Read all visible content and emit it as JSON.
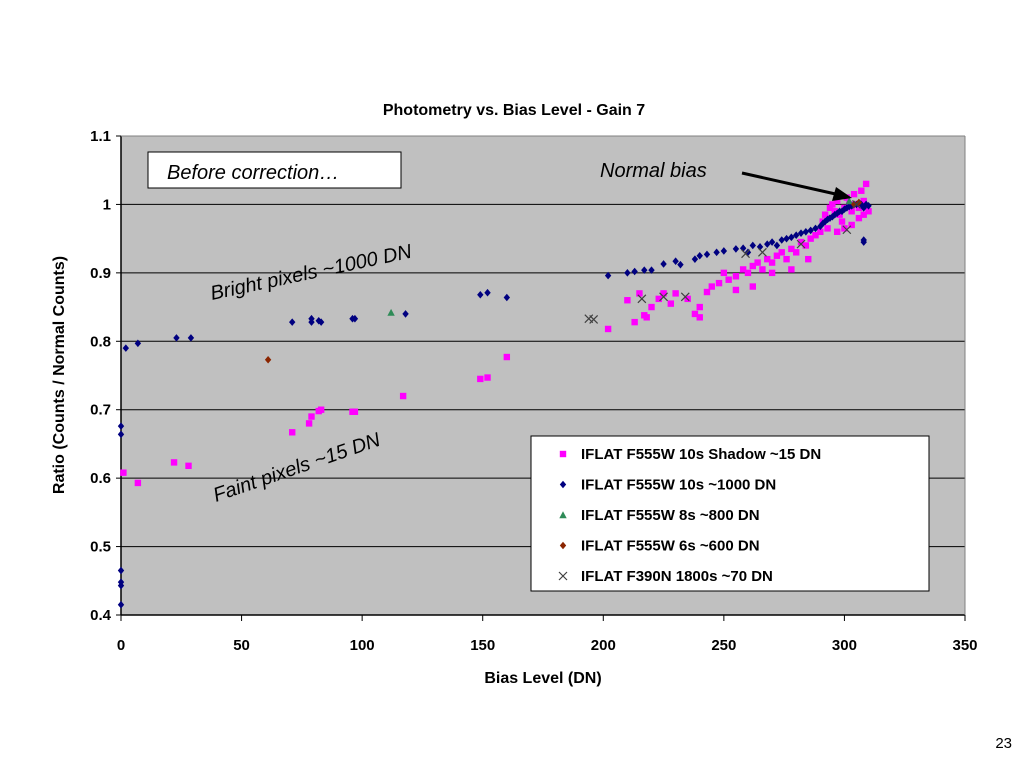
{
  "slide": {
    "page_number": "23"
  },
  "chart_data": {
    "type": "scatter",
    "title": "Photometry vs. Bias Level - Gain 7",
    "xlabel": "Bias Level (DN)",
    "ylabel": "Ratio (Counts / Normal Counts)",
    "xlim": [
      0,
      350
    ],
    "ylim": [
      0.4,
      1.1
    ],
    "x_ticks": [
      "0",
      "50",
      "100",
      "150",
      "200",
      "250",
      "300",
      "350"
    ],
    "y_ticks": [
      "0.4",
      "0.5",
      "0.6",
      "0.7",
      "0.8",
      "0.9",
      "1",
      "1.1"
    ],
    "grid": "horizontal",
    "plot_background": "#c0c0c0",
    "legend_position": "bottom-right",
    "annotations": {
      "box": "Before correction…",
      "normal_bias": "Normal bias",
      "bright": "Bright pixels ~1000 DN",
      "faint": "Faint pixels ~15 DN"
    },
    "series": [
      {
        "name": "IFLAT F555W 10s Shadow ~15 DN",
        "marker": "square",
        "color": "#ff00ff",
        "points": [
          [
            1,
            0.608
          ],
          [
            7,
            0.593
          ],
          [
            22,
            0.623
          ],
          [
            28,
            0.618
          ],
          [
            71,
            0.667
          ],
          [
            78,
            0.68
          ],
          [
            79,
            0.69
          ],
          [
            82,
            0.698
          ],
          [
            83,
            0.7
          ],
          [
            96,
            0.697
          ],
          [
            97,
            0.697
          ],
          [
            117,
            0.72
          ],
          [
            149,
            0.745
          ],
          [
            152,
            0.747
          ],
          [
            160,
            0.777
          ],
          [
            202,
            0.818
          ],
          [
            210,
            0.86
          ],
          [
            213,
            0.828
          ],
          [
            215,
            0.87
          ],
          [
            217,
            0.838
          ],
          [
            218,
            0.835
          ],
          [
            220,
            0.85
          ],
          [
            223,
            0.862
          ],
          [
            228,
            0.855
          ],
          [
            230,
            0.87
          ],
          [
            235,
            0.862
          ],
          [
            238,
            0.84
          ],
          [
            240,
            0.85
          ],
          [
            243,
            0.872
          ],
          [
            245,
            0.88
          ],
          [
            248,
            0.885
          ],
          [
            250,
            0.9
          ],
          [
            252,
            0.89
          ],
          [
            255,
            0.895
          ],
          [
            258,
            0.905
          ],
          [
            260,
            0.9
          ],
          [
            262,
            0.91
          ],
          [
            264,
            0.915
          ],
          [
            266,
            0.905
          ],
          [
            268,
            0.92
          ],
          [
            270,
            0.915
          ],
          [
            272,
            0.925
          ],
          [
            274,
            0.93
          ],
          [
            276,
            0.92
          ],
          [
            278,
            0.935
          ],
          [
            280,
            0.93
          ],
          [
            282,
            0.945
          ],
          [
            284,
            0.94
          ],
          [
            286,
            0.95
          ],
          [
            288,
            0.955
          ],
          [
            290,
            0.96
          ],
          [
            291,
            0.975
          ],
          [
            292,
            0.985
          ],
          [
            293,
            0.98
          ],
          [
            294,
            0.995
          ],
          [
            295,
            1.0
          ],
          [
            296,
            0.99
          ],
          [
            297,
            1.005
          ],
          [
            298,
            0.985
          ],
          [
            299,
            0.975
          ],
          [
            300,
            0.995
          ],
          [
            301,
            1.01
          ],
          [
            302,
            1.0
          ],
          [
            303,
            0.99
          ],
          [
            304,
            1.015
          ],
          [
            305,
            1.0
          ],
          [
            306,
            0.995
          ],
          [
            307,
            1.02
          ],
          [
            308,
            1.005
          ],
          [
            309,
            1.03
          ],
          [
            310,
            0.99
          ],
          [
            300,
            0.965
          ],
          [
            303,
            0.97
          ],
          [
            297,
            0.96
          ],
          [
            293,
            0.965
          ],
          [
            306,
            0.98
          ],
          [
            308,
            0.985
          ],
          [
            240,
            0.835
          ],
          [
            225,
            0.87
          ],
          [
            255,
            0.875
          ],
          [
            262,
            0.88
          ],
          [
            270,
            0.9
          ],
          [
            278,
            0.905
          ],
          [
            285,
            0.92
          ]
        ]
      },
      {
        "name": "IFLAT F555W 10s ~1000 DN",
        "marker": "diamond",
        "color": "#000080",
        "points": [
          [
            0,
            0.676
          ],
          [
            0,
            0.664
          ],
          [
            0,
            0.465
          ],
          [
            0,
            0.448
          ],
          [
            0,
            0.443
          ],
          [
            0,
            0.415
          ],
          [
            2,
            0.79
          ],
          [
            7,
            0.797
          ],
          [
            23,
            0.805
          ],
          [
            29,
            0.805
          ],
          [
            71,
            0.828
          ],
          [
            79,
            0.833
          ],
          [
            79,
            0.828
          ],
          [
            82,
            0.83
          ],
          [
            83,
            0.828
          ],
          [
            96,
            0.833
          ],
          [
            97,
            0.833
          ],
          [
            118,
            0.84
          ],
          [
            149,
            0.868
          ],
          [
            152,
            0.871
          ],
          [
            160,
            0.864
          ],
          [
            202,
            0.896
          ],
          [
            210,
            0.9
          ],
          [
            213,
            0.902
          ],
          [
            217,
            0.904
          ],
          [
            220,
            0.904
          ],
          [
            225,
            0.913
          ],
          [
            230,
            0.917
          ],
          [
            232,
            0.912
          ],
          [
            238,
            0.92
          ],
          [
            240,
            0.925
          ],
          [
            243,
            0.927
          ],
          [
            247,
            0.93
          ],
          [
            250,
            0.932
          ],
          [
            255,
            0.935
          ],
          [
            258,
            0.936
          ],
          [
            260,
            0.93
          ],
          [
            262,
            0.94
          ],
          [
            265,
            0.938
          ],
          [
            268,
            0.942
          ],
          [
            270,
            0.945
          ],
          [
            272,
            0.94
          ],
          [
            274,
            0.948
          ],
          [
            276,
            0.95
          ],
          [
            278,
            0.952
          ],
          [
            280,
            0.955
          ],
          [
            282,
            0.958
          ],
          [
            284,
            0.96
          ],
          [
            286,
            0.962
          ],
          [
            288,
            0.965
          ],
          [
            290,
            0.968
          ],
          [
            291,
            0.972
          ],
          [
            292,
            0.975
          ],
          [
            293,
            0.978
          ],
          [
            294,
            0.98
          ],
          [
            295,
            0.982
          ],
          [
            296,
            0.985
          ],
          [
            297,
            0.987
          ],
          [
            298,
            0.99
          ],
          [
            299,
            0.99
          ],
          [
            300,
            0.993
          ],
          [
            301,
            0.995
          ],
          [
            302,
            0.997
          ],
          [
            303,
            0.998
          ],
          [
            304,
            1.0
          ],
          [
            305,
            1.0
          ],
          [
            306,
            1.002
          ],
          [
            307,
            1.0
          ],
          [
            308,
            0.995
          ],
          [
            309,
            1.0
          ],
          [
            310,
            0.998
          ],
          [
            308,
            0.948
          ],
          [
            308,
            0.945
          ]
        ]
      },
      {
        "name": "IFLAT F555W 8s ~800 DN",
        "marker": "triangle",
        "color": "#2e8b57",
        "points": [
          [
            112,
            0.842
          ],
          [
            302,
            1.005
          ]
        ]
      },
      {
        "name": "IFLAT F555W 6s ~600 DN",
        "marker": "diamond",
        "color": "#8b2500",
        "points": [
          [
            61,
            0.773
          ],
          [
            304,
            1.0
          ],
          [
            306,
            1.003
          ]
        ]
      },
      {
        "name": "IFLAT F390N 1800s ~70 DN",
        "marker": "x",
        "color": "#404040",
        "points": [
          [
            194,
            0.833
          ],
          [
            196,
            0.832
          ],
          [
            216,
            0.862
          ],
          [
            225,
            0.865
          ],
          [
            234,
            0.865
          ],
          [
            259,
            0.928
          ],
          [
            266,
            0.93
          ],
          [
            282,
            0.942
          ],
          [
            301,
            0.963
          ],
          [
            305,
            1.0
          ]
        ]
      }
    ]
  }
}
